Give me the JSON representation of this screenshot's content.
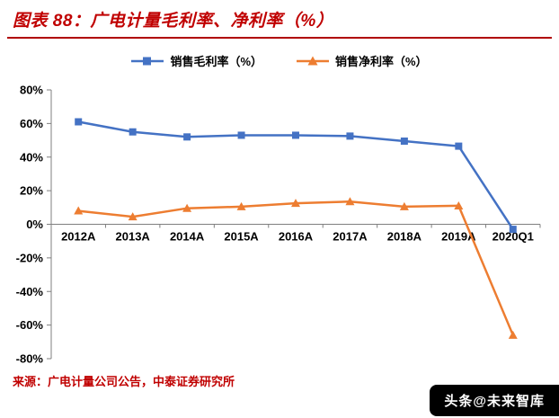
{
  "header": {
    "title": "图表 88：广电计量毛利率、净利率（%）"
  },
  "chart_data": {
    "type": "line",
    "title": "广电计量毛利率、净利率（%）",
    "categories": [
      "2012A",
      "2013A",
      "2014A",
      "2015A",
      "2016A",
      "2017A",
      "2018A",
      "2019A",
      "2020Q1"
    ],
    "series": [
      {
        "name": "销售毛利率（%）",
        "color": "#4472C4",
        "marker": "square",
        "values": [
          61,
          55,
          52,
          53,
          53,
          52.5,
          49.5,
          46.5,
          -3
        ]
      },
      {
        "name": "销售净利率（%）",
        "color": "#ED7D31",
        "marker": "triangle",
        "values": [
          8,
          4.5,
          9.5,
          10.5,
          12.5,
          13.5,
          10.5,
          11,
          -66
        ]
      }
    ],
    "ylim": [
      -80,
      80
    ],
    "ytick_step": 20,
    "ytick_suffix": "%",
    "axis_color": "#7F7F7F",
    "label_color": "#000000",
    "grid": false,
    "legend_position": "top"
  },
  "footer": {
    "source": "来源：广电计量公司公告，中泰证券研究所",
    "watermark": "头条@未来智库"
  }
}
